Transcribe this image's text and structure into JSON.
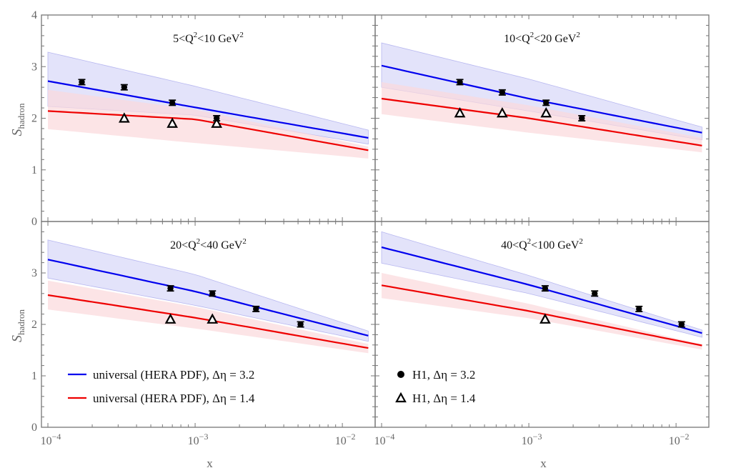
{
  "chart_data": {
    "type": "line",
    "layout": "2x2 panel grid, shared axes",
    "xlabel": "x",
    "ylabel": "S",
    "ylabel_subscript": "hadron",
    "xscale": "log",
    "xlim": [
      9.04e-05,
      0.0167
    ],
    "ylim": [
      0,
      4
    ],
    "x_tick_labels": [
      {
        "base": "10",
        "exp": "−4",
        "value": 0.0001
      },
      {
        "base": "10",
        "exp": "−3",
        "value": 0.001
      },
      {
        "base": "10",
        "exp": "−2",
        "value": 0.01
      }
    ],
    "y_tick_labels": [
      "0",
      "1",
      "2",
      "3",
      "4"
    ],
    "y_tick_values": [
      0,
      1,
      2,
      3,
      4
    ],
    "colors": {
      "blue_line": "#0000ee",
      "blue_band": "#ccccf5",
      "red_line": "#ee0000",
      "red_band": "#fbd9dc",
      "frame": "#777777",
      "points": "#000000"
    },
    "legend": {
      "lines": [
        {
          "label": "universal (HERA PDF), Δη = 3.2",
          "color": "#0000ee",
          "panel": 2,
          "placement": "bottom-left"
        },
        {
          "label": "universal (HERA PDF), Δη = 1.4",
          "color": "#ee0000",
          "panel": 2,
          "placement": "bottom-left"
        }
      ],
      "markers": [
        {
          "label": "H1, Δη = 3.2",
          "marker": "filled-circle",
          "panel": 3,
          "placement": "bottom-left"
        },
        {
          "label": "H1, Δη = 1.4",
          "marker": "open-triangle",
          "panel": 3,
          "placement": "bottom-left"
        }
      ]
    },
    "panels": [
      {
        "title_pre": "5<Q",
        "title_mid": "<10 GeV",
        "sup": "2",
        "curves": {
          "x": [
            0.0001,
            0.001,
            0.015
          ],
          "blue": {
            "line": [
              2.72,
              2.21,
              1.62
            ],
            "upper": [
              3.28,
              2.62,
              1.77
            ],
            "lower": [
              2.23,
              2.06,
              1.5
            ]
          },
          "red": {
            "line": [
              2.14,
              1.98,
              1.38
            ],
            "upper": [
              2.55,
              2.17,
              1.45
            ],
            "lower": [
              1.79,
              1.52,
              1.22
            ]
          }
        },
        "h1_eta32": {
          "x": [
            0.00017,
            0.00033,
            0.0007,
            0.0014
          ],
          "y": [
            2.7,
            2.6,
            2.3,
            2.0
          ],
          "err": [
            0.05,
            0.05,
            0.05,
            0.05
          ]
        },
        "h1_eta14": {
          "x": [
            0.00033,
            0.0007,
            0.0014
          ],
          "y": [
            2.0,
            1.9,
            1.9
          ]
        }
      },
      {
        "title_pre": "10<Q",
        "title_mid": "<20 GeV",
        "sup": "2",
        "curves": {
          "x": [
            0.0001,
            0.001,
            0.015
          ],
          "blue": {
            "line": [
              3.02,
              2.38,
              1.72
            ],
            "upper": [
              3.46,
              2.76,
              1.83
            ],
            "lower": [
              2.6,
              2.14,
              1.58
            ]
          },
          "red": {
            "line": [
              2.38,
              2.0,
              1.47
            ],
            "upper": [
              2.7,
              2.25,
              1.62
            ],
            "lower": [
              2.08,
              1.72,
              1.34
            ]
          }
        },
        "h1_eta32": {
          "x": [
            0.00034,
            0.00066,
            0.00131,
            0.00229
          ],
          "y": [
            2.7,
            2.5,
            2.3,
            2.0
          ],
          "err": [
            0.05,
            0.05,
            0.05,
            0.05
          ]
        },
        "h1_eta14": {
          "x": [
            0.00034,
            0.00066,
            0.00131
          ],
          "y": [
            2.1,
            2.1,
            2.1
          ]
        }
      },
      {
        "title_pre": "20<Q",
        "title_mid": "<40 GeV",
        "sup": "2",
        "curves": {
          "x": [
            0.0001,
            0.001,
            0.015
          ],
          "blue": {
            "line": [
              3.26,
              2.64,
              1.78
            ],
            "upper": [
              3.64,
              2.97,
              1.87
            ],
            "lower": [
              2.9,
              2.37,
              1.67
            ]
          },
          "red": {
            "line": [
              2.57,
              2.13,
              1.54
            ],
            "upper": [
              2.85,
              2.34,
              1.62
            ],
            "lower": [
              2.29,
              1.92,
              1.44
            ]
          }
        },
        "h1_eta32": {
          "x": [
            0.00068,
            0.00131,
            0.00259,
            0.0052
          ],
          "y": [
            2.7,
            2.6,
            2.3,
            2.0
          ],
          "err": [
            0.05,
            0.05,
            0.05,
            0.05
          ]
        },
        "h1_eta14": {
          "x": [
            0.00068,
            0.00131
          ],
          "y": [
            2.1,
            2.1
          ]
        }
      },
      {
        "title_pre": "40<Q",
        "title_mid": "<100 GeV",
        "sup": "2",
        "curves": {
          "x": [
            0.0001,
            0.001,
            0.015
          ],
          "blue": {
            "line": [
              3.5,
              2.77,
              1.83
            ],
            "upper": [
              3.8,
              2.95,
              1.89
            ],
            "lower": [
              3.19,
              2.6,
              1.75
            ]
          },
          "red": {
            "line": [
              2.76,
              2.26,
              1.59
            ],
            "upper": [
              3.0,
              2.4,
              1.61
            ],
            "lower": [
              2.51,
              2.12,
              1.51
            ]
          }
        },
        "h1_eta32": {
          "x": [
            0.00129,
            0.0028,
            0.0056,
            0.0109
          ],
          "y": [
            2.7,
            2.6,
            2.3,
            2.0
          ],
          "err": [
            0.05,
            0.05,
            0.05,
            0.05
          ]
        },
        "h1_eta14": {
          "x": [
            0.00129
          ],
          "y": [
            2.1
          ]
        }
      }
    ]
  }
}
